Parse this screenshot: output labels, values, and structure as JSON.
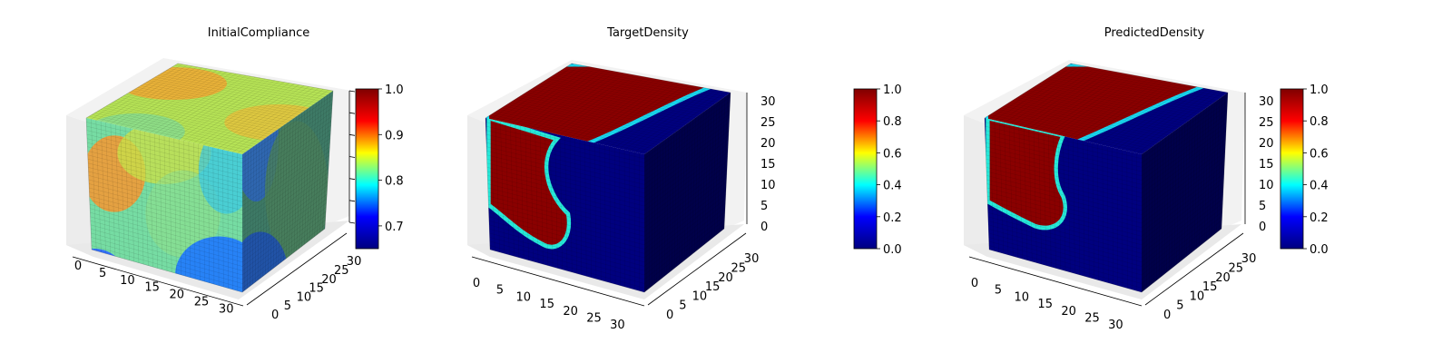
{
  "colormap": {
    "name": "jet",
    "stops": [
      "#00007f",
      "#0000ff",
      "#00ffff",
      "#ffff00",
      "#ff0000",
      "#7f0000"
    ]
  },
  "chart_data": [
    {
      "type": "heatmap",
      "title": "InitialCompliance",
      "x_ticks": [
        "0",
        "5",
        "10",
        "15",
        "20",
        "25",
        "30"
      ],
      "y_ticks": [
        "0",
        "5",
        "10",
        "15",
        "20",
        "25",
        "30"
      ],
      "z_ticks": [],
      "xlim": [
        0,
        32
      ],
      "ylim": [
        0,
        32
      ],
      "zlim": [
        0,
        32
      ],
      "colorbar": {
        "min": 0.65,
        "max": 1.0,
        "ticks": [
          "0.7",
          "0.8",
          "0.9",
          "1.0"
        ],
        "tick_values": [
          0.7,
          0.8,
          0.9,
          1.0
        ]
      },
      "grid": true
    },
    {
      "type": "heatmap",
      "title": "TargetDensity",
      "x_ticks": [
        "0",
        "5",
        "10",
        "15",
        "20",
        "25",
        "30"
      ],
      "y_ticks": [
        "0",
        "5",
        "10",
        "15",
        "20",
        "25",
        "30"
      ],
      "z_ticks": [
        "0",
        "5",
        "10",
        "15",
        "20",
        "25",
        "30"
      ],
      "xlim": [
        0,
        32
      ],
      "ylim": [
        0,
        32
      ],
      "zlim": [
        0,
        32
      ],
      "colorbar": {
        "min": 0.0,
        "max": 1.0,
        "ticks": [
          "0.0",
          "0.2",
          "0.4",
          "0.6",
          "0.8",
          "1.0"
        ],
        "tick_values": [
          0,
          0.2,
          0.4,
          0.6,
          0.8,
          1.0
        ]
      },
      "grid": true
    },
    {
      "type": "heatmap",
      "title": "PredictedDensity",
      "x_ticks": [
        "0",
        "5",
        "10",
        "15",
        "20",
        "25",
        "30"
      ],
      "y_ticks": [
        "0",
        "5",
        "10",
        "15",
        "20",
        "25",
        "30"
      ],
      "z_ticks": [
        "0",
        "5",
        "10",
        "15",
        "20",
        "25",
        "30"
      ],
      "xlim": [
        0,
        32
      ],
      "ylim": [
        0,
        32
      ],
      "zlim": [
        0,
        32
      ],
      "colorbar": {
        "min": 0.0,
        "max": 1.0,
        "ticks": [
          "0.0",
          "0.2",
          "0.4",
          "0.6",
          "0.8",
          "1.0"
        ],
        "tick_values": [
          0,
          0.2,
          0.4,
          0.6,
          0.8,
          1.0
        ]
      },
      "grid": true
    }
  ]
}
